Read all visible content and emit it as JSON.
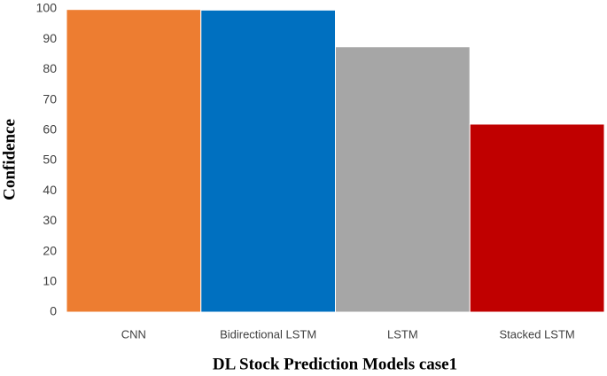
{
  "chart_data": {
    "type": "bar",
    "x_label": "DL Stock Prediction Models case1",
    "y_label": "Confidence",
    "categories": [
      "CNN",
      "Bidirectional LSTM",
      "LSTM",
      "Stacked LSTM"
    ],
    "values": [
      99.8,
      99.6,
      87.5,
      62
    ],
    "colors": [
      "#ed7d31",
      "#0070c0",
      "#a6a6a6",
      "#c00000"
    ],
    "ylim": [
      0,
      100
    ],
    "yticks": [
      0,
      10,
      20,
      30,
      40,
      50,
      60,
      70,
      80,
      90,
      100
    ],
    "grid": false
  }
}
